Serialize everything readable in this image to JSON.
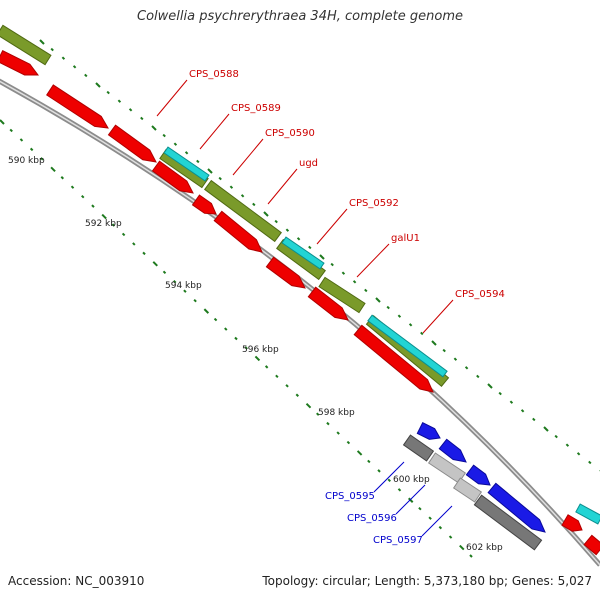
{
  "title": "Colwellia psychrerythraea 34H, complete genome",
  "footer": {
    "accession": "Accession: NC_003910",
    "summary": "Topology: circular; Length: 5,373,180 bp; Genes: 5,027"
  },
  "colors": {
    "backbone": "#8c8c8c",
    "tick": "#1e7a1e",
    "tick_label": "#222222",
    "cds_red": "#ee0000",
    "cds_red_dark": "#b00000",
    "olive": "#7a9a2a",
    "olive_dark": "#4f6a12",
    "cyan": "#22d4d4",
    "blue": "#1a1ae6",
    "blue_dark": "#0a0a9a",
    "gray_dark": "#777777",
    "gray_light": "#c4c4c4",
    "label_red": "#cc0000",
    "label_blue": "#0000cc"
  },
  "scale_labels": [
    "590 kbp",
    "592 kbp",
    "594 kbp",
    "596 kbp",
    "598 kbp",
    "600 kbp",
    "602 kbp"
  ],
  "gene_labels_top": [
    "CPS_0588",
    "CPS_0589",
    "CPS_0590",
    "ugd",
    "CPS_0592",
    "galU1",
    "CPS_0594"
  ],
  "gene_labels_bottom": [
    "CPS_0595",
    "CPS_0596",
    "CPS_0597"
  ]
}
